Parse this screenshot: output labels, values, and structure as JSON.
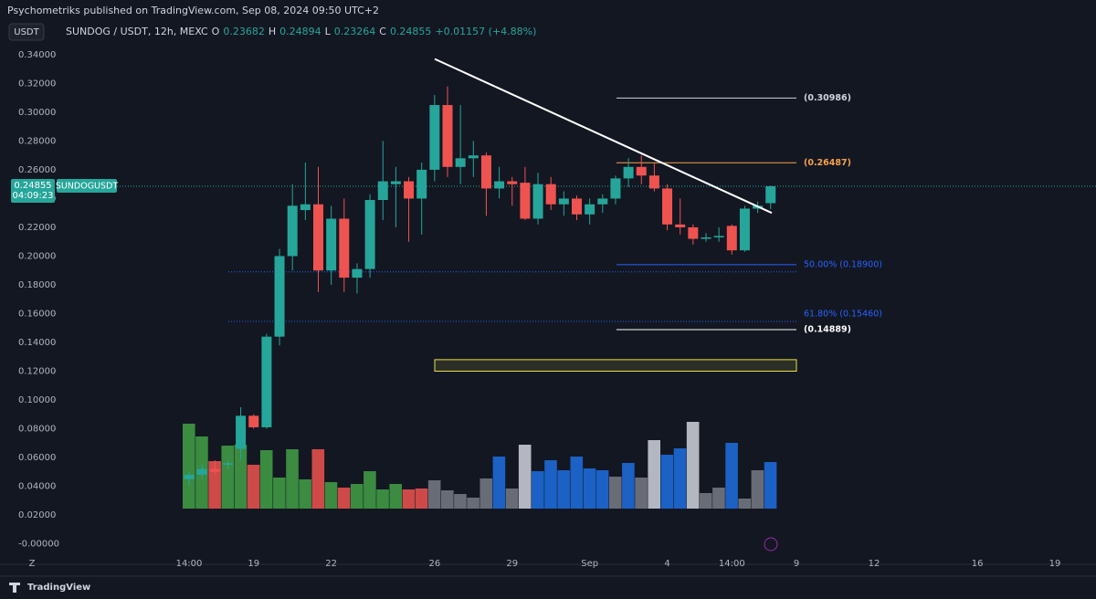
{
  "header": {
    "publisher": "Psychometriks published on TradingView.com, Sep 08, 2024 09:50 UTC+2",
    "currency_button": "USDT",
    "footer_logo": "TradingView",
    "timezone_button": "Z"
  },
  "chart_data": {
    "type": "candlestick",
    "legend": {
      "symbol": "SUNDOG / USDT, 12h, MEXC",
      "fields": [
        {
          "key": "O",
          "value": "0.23682"
        },
        {
          "key": "H",
          "value": "0.24894"
        },
        {
          "key": "L",
          "value": "0.23264"
        },
        {
          "key": "C",
          "value": "0.24855"
        }
      ],
      "change": "+0.01157 (+4.88%)"
    },
    "categories": [
      "14:00",
      null,
      null,
      null,
      null,
      "19",
      null,
      null,
      null,
      null,
      null,
      "22",
      null,
      null,
      null,
      null,
      null,
      null,
      null,
      "26",
      null,
      null,
      null,
      null,
      null,
      "29",
      null,
      null,
      null,
      null,
      null,
      "Sep",
      null,
      null,
      null,
      null,
      null,
      "4",
      null,
      null,
      null,
      null,
      "14:00",
      null,
      null,
      null,
      null,
      "9",
      null,
      null,
      null,
      null,
      null,
      "12",
      null,
      null,
      null,
      null,
      null,
      null,
      null,
      "16",
      null,
      null,
      null,
      null,
      null,
      "19"
    ],
    "open": [
      0.045,
      0.048,
      0.052,
      0.055,
      0.066,
      0.089,
      0.081,
      0.144,
      0.2,
      0.232,
      0.236,
      0.19,
      0.226,
      0.185,
      0.191,
      0.239,
      0.25,
      0.252,
      0.24,
      0.26,
      0.305,
      0.262,
      0.268,
      0.27,
      0.247,
      0.252,
      0.251,
      0.226,
      0.25,
      0.236,
      0.24,
      0.229,
      0.236,
      0.24,
      0.254,
      0.262,
      0.256,
      0.247,
      0.222,
      0.22,
      0.212,
      0.213,
      0.221,
      0.204,
      0.233,
      0.23682,
      null,
      null,
      null,
      null,
      null,
      null,
      null,
      null,
      null,
      null,
      null,
      null,
      null,
      null,
      null,
      null,
      null,
      null,
      null,
      null,
      null,
      null
    ],
    "high": [
      0.05,
      0.055,
      0.058,
      0.058,
      0.095,
      0.09,
      0.146,
      0.205,
      0.25,
      0.265,
      0.262,
      0.235,
      0.24,
      0.195,
      0.243,
      0.28,
      0.262,
      0.255,
      0.265,
      0.312,
      0.318,
      0.305,
      0.28,
      0.272,
      0.262,
      0.255,
      0.262,
      0.258,
      0.255,
      0.245,
      0.242,
      0.24,
      0.243,
      0.256,
      0.268,
      0.27,
      0.265,
      0.25,
      0.24,
      0.222,
      0.216,
      0.22,
      0.222,
      0.235,
      0.238,
      0.24894,
      null,
      null,
      null,
      null,
      null,
      null,
      null,
      null,
      null,
      null,
      null,
      null,
      null,
      null,
      null,
      null,
      null,
      null,
      null,
      null,
      null,
      null
    ],
    "low": [
      0.04,
      0.045,
      0.048,
      0.052,
      0.058,
      0.08,
      0.08,
      0.138,
      0.19,
      0.225,
      0.175,
      0.18,
      0.175,
      0.174,
      0.185,
      0.225,
      0.22,
      0.21,
      0.215,
      0.252,
      0.255,
      0.25,
      0.255,
      0.228,
      0.24,
      0.235,
      0.225,
      0.222,
      0.232,
      0.228,
      0.225,
      0.222,
      0.23,
      0.236,
      0.248,
      0.25,
      0.245,
      0.218,
      0.215,
      0.208,
      0.21,
      0.21,
      0.201,
      0.203,
      0.23,
      0.23264,
      null,
      null,
      null,
      null,
      null,
      null,
      null,
      null,
      null,
      null,
      null,
      null,
      null,
      null,
      null,
      null,
      null,
      null,
      null,
      null,
      null,
      null
    ],
    "close": [
      0.048,
      0.052,
      0.05,
      0.056,
      0.089,
      0.081,
      0.144,
      0.2,
      0.235,
      0.236,
      0.19,
      0.226,
      0.185,
      0.191,
      0.239,
      0.252,
      0.252,
      0.24,
      0.26,
      0.305,
      0.262,
      0.268,
      0.27,
      0.247,
      0.252,
      0.25,
      0.226,
      0.25,
      0.236,
      0.24,
      0.229,
      0.236,
      0.24,
      0.254,
      0.262,
      0.256,
      0.247,
      0.222,
      0.22,
      0.212,
      0.213,
      0.214,
      0.204,
      0.233,
      0.235,
      0.24855,
      null,
      null,
      null,
      null,
      null,
      null,
      null,
      null,
      null,
      null,
      null,
      null,
      null,
      null,
      null,
      null,
      null,
      null,
      null,
      null,
      null,
      null
    ],
    "up_color": "#26a69a",
    "down_color": "#ef5350",
    "volume": [
      93,
      79,
      52,
      69,
      70,
      48,
      64,
      34,
      65,
      32,
      65,
      29,
      23,
      27,
      41,
      21,
      27,
      21,
      22,
      31,
      20,
      16,
      12,
      33,
      57,
      22,
      70,
      41,
      53,
      42,
      57,
      44,
      42,
      35,
      50,
      34,
      75,
      59,
      66,
      95,
      17,
      23,
      72,
      11,
      42,
      51,
      null,
      null,
      null,
      null,
      null,
      null,
      null,
      null,
      null,
      null,
      null,
      null,
      null,
      null,
      null,
      null,
      null,
      null,
      null,
      null,
      null,
      null
    ],
    "volume_colors": [
      "#43a047",
      "#43a047",
      "#ef5350",
      "#43a047",
      "#43a047",
      "#ef5350",
      "#43a047",
      "#43a047",
      "#43a047",
      "#43a047",
      "#ef5350",
      "#43a047",
      "#ef5350",
      "#43a047",
      "#43a047",
      "#43a047",
      "#43a047",
      "#ef5350",
      "#ef5350",
      "#787b86",
      "#787b86",
      "#787b86",
      "#787b86",
      "#787b86",
      "#1e6fe0",
      "#787b86",
      "#d1d4dc",
      "#1e6fe0",
      "#1e6fe0",
      "#1e6fe0",
      "#1e6fe0",
      "#1e6fe0",
      "#1e6fe0",
      "#787b86",
      "#1e6fe0",
      "#787b86",
      "#d1d4dc",
      "#1e6fe0",
      "#1e6fe0",
      "#d1d4dc",
      "#787b86",
      "#787b86",
      "#1e6fe0",
      "#787b86",
      "#787b86",
      "#1e6fe0",
      null,
      null,
      null,
      null,
      null,
      null,
      null,
      null,
      null,
      null,
      null,
      null,
      null,
      null,
      null,
      null,
      null,
      null,
      null,
      null,
      null,
      null
    ],
    "ylim": [
      -0.006,
      0.352
    ],
    "yticks": [
      {
        "value": 0,
        "label": "-0.00000"
      },
      {
        "value": 0.02,
        "label": "0.02000"
      },
      {
        "value": 0.04,
        "label": "0.04000"
      },
      {
        "value": 0.06,
        "label": "0.06000"
      },
      {
        "value": 0.08,
        "label": "0.08000"
      },
      {
        "value": 0.1,
        "label": "0.10000"
      },
      {
        "value": 0.12,
        "label": "0.12000"
      },
      {
        "value": 0.14,
        "label": "0.14000"
      },
      {
        "value": 0.16,
        "label": "0.16000"
      },
      {
        "value": 0.18,
        "label": "0.18000"
      },
      {
        "value": 0.2,
        "label": "0.20000"
      },
      {
        "value": 0.22,
        "label": "0.22000"
      },
      {
        "value": 0.24,
        "label": "0.24000"
      },
      {
        "value": 0.26,
        "label": "0.26000"
      },
      {
        "value": 0.28,
        "label": "0.28000"
      },
      {
        "value": 0.3,
        "label": "0.30000"
      },
      {
        "value": 0.32,
        "label": "0.32000"
      },
      {
        "value": 0.34,
        "label": "0.34000"
      }
    ],
    "levels": [
      {
        "value": 0.30986,
        "label": "(0.30986)",
        "color": "#d1d4dc",
        "dashed": false
      },
      {
        "value": 0.26487,
        "label": "(0.26487)",
        "color": "#f7a24b",
        "dashed": false
      },
      {
        "value": 0.194,
        "color": "#2962ff",
        "dashed": false
      },
      {
        "value": 0.189,
        "label": "50.00% (0.18900)",
        "color": "#2962ff",
        "dashed": true
      },
      {
        "value": 0.1546,
        "label": "61.80% (0.15460)",
        "color": "#2962ff",
        "dashed": true
      },
      {
        "value": 0.14889,
        "label": "(0.14889)",
        "color": "#ffffff",
        "dashed": false
      }
    ],
    "trendline": [
      0.337,
      0.23
    ],
    "trendline_color": "#ffffff",
    "zone": [
      0.12,
      0.128
    ],
    "zone_color": "#e8e04a",
    "price_tag": {
      "value": 0.24855,
      "label": "0.24855",
      "countdown": "04:09:23",
      "symbol": "SUNDOGUSDT",
      "color": "#26a69a"
    }
  }
}
